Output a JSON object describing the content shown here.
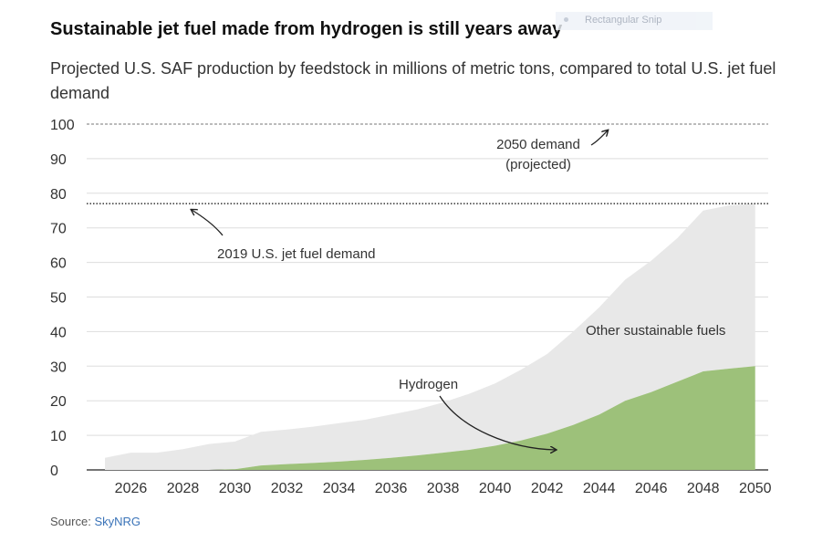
{
  "title": "Sustainable jet fuel made from hydrogen is still years away",
  "subtitle": "Projected U.S. SAF production by feedstock in millions of metric tons, compared to total U.S. jet fuel demand",
  "overlay": {
    "snip_label": "Rectangular Snip"
  },
  "source": {
    "label": "Source:",
    "link_text": "SkyNRG"
  },
  "colors": {
    "hydrogen": "#9dc17a",
    "other": "#e8e8e8",
    "grid": "#dddddd",
    "ref_line": "#444444"
  },
  "chart_data": {
    "type": "area",
    "stacked": true,
    "x": [
      2025,
      2026,
      2027,
      2028,
      2029,
      2030,
      2031,
      2032,
      2033,
      2034,
      2035,
      2036,
      2037,
      2038,
      2039,
      2040,
      2041,
      2042,
      2043,
      2044,
      2045,
      2046,
      2047,
      2048,
      2049,
      2050
    ],
    "series": [
      {
        "name": "Hydrogen",
        "values": [
          0,
          0,
          0,
          0,
          0,
          0.2,
          1.3,
          1.7,
          2,
          2.4,
          2.9,
          3.5,
          4.2,
          5,
          5.8,
          7,
          8.5,
          10.5,
          13,
          16,
          20,
          22.5,
          25.5,
          28.5,
          29.3,
          30
        ]
      },
      {
        "name": "Other sustainable fuels",
        "values": [
          3.5,
          5,
          5,
          6,
          7.5,
          8,
          9.7,
          10,
          10.5,
          11.1,
          11.6,
          12.5,
          13.3,
          14.5,
          16.2,
          18,
          20.5,
          23,
          27,
          31,
          35,
          38,
          41.5,
          46.5,
          47.2,
          47
        ]
      }
    ],
    "reference_lines": [
      {
        "label": "2019 U.S. jet fuel demand",
        "value": 77,
        "style": "dotted"
      },
      {
        "label_line1": "2050 demand",
        "label_line2": "(projected)",
        "value": 100,
        "style": "dashed"
      }
    ],
    "annotations": {
      "hydrogen": "Hydrogen",
      "other": "Other sustainable fuels"
    },
    "x_ticks": [
      "2026",
      "2028",
      "2030",
      "2032",
      "2034",
      "2036",
      "2038",
      "2040",
      "2042",
      "2044",
      "2046",
      "2048",
      "2050"
    ],
    "y_ticks": [
      "0",
      "10",
      "20",
      "30",
      "40",
      "50",
      "60",
      "70",
      "80",
      "90",
      "100"
    ],
    "xlim": [
      2024.3,
      2050.5
    ],
    "ylim": [
      0,
      100
    ],
    "grid": true
  }
}
